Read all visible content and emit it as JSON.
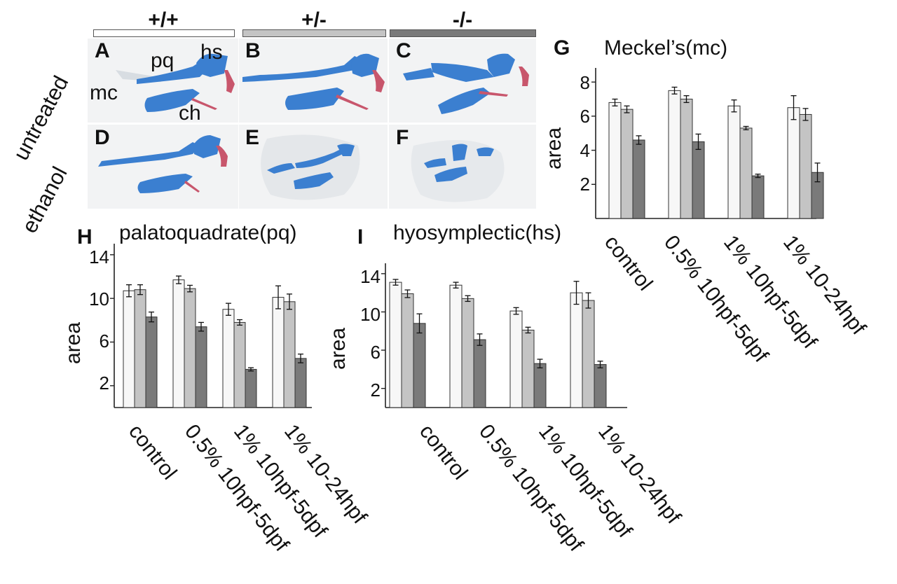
{
  "genotypes": [
    {
      "label": "+/+",
      "color": "#ffffff"
    },
    {
      "label": "+/-",
      "color": "#c4c4c4"
    },
    {
      "label": "-/-",
      "color": "#7a7a7a"
    }
  ],
  "rows": [
    "untreated",
    "ethanol"
  ],
  "panels": [
    {
      "letter": "A",
      "annotations": [
        "pq",
        "hs",
        "mc",
        "ch"
      ]
    },
    {
      "letter": "B"
    },
    {
      "letter": "C"
    },
    {
      "letter": "D"
    },
    {
      "letter": "E"
    },
    {
      "letter": "F"
    }
  ],
  "colors": {
    "cartilage": "#3b7fd0",
    "bone": "#c8566c",
    "panel_bg": "#f2f3f4"
  },
  "chart_data": [
    {
      "letter": "G",
      "type": "bar",
      "title": "Meckel’s(mc)",
      "ylabel": "area",
      "ylim": [
        0,
        8.5
      ],
      "yticks": [
        2,
        4,
        6,
        8
      ],
      "categories": [
        "control",
        "0.5% 10hpf-5dpf",
        "1% 10hpf-5dpf",
        "1% 10-24hpf"
      ],
      "series": [
        {
          "values": [
            6.8,
            7.5,
            6.6,
            6.5
          ],
          "errors": [
            0.2,
            0.2,
            0.35,
            0.7
          ]
        },
        {
          "values": [
            6.4,
            7.0,
            5.3,
            6.1
          ],
          "errors": [
            0.2,
            0.2,
            0.1,
            0.35
          ]
        },
        {
          "values": [
            4.6,
            4.5,
            2.5,
            2.7
          ],
          "errors": [
            0.25,
            0.45,
            0.1,
            0.55
          ]
        }
      ]
    },
    {
      "letter": "H",
      "type": "bar",
      "title": "palatoquadrate(pq)",
      "ylabel": "area",
      "ylim": [
        0,
        14.5
      ],
      "yticks": [
        2,
        6,
        10,
        14
      ],
      "categories": [
        "control",
        "0.5% 10hpf-5dpf",
        "1% 10hpf-5dpf",
        "1% 10-24hpf"
      ],
      "series": [
        {
          "values": [
            10.7,
            11.7,
            9.0,
            10.1
          ],
          "errors": [
            0.55,
            0.35,
            0.55,
            1.05
          ]
        },
        {
          "values": [
            10.8,
            10.9,
            7.8,
            9.7
          ],
          "errors": [
            0.45,
            0.3,
            0.25,
            0.7
          ]
        },
        {
          "values": [
            8.3,
            7.4,
            3.5,
            4.5
          ],
          "errors": [
            0.45,
            0.4,
            0.15,
            0.4
          ]
        }
      ]
    },
    {
      "letter": "I",
      "type": "bar",
      "title": "hyosymplectic(hs)",
      "ylabel": "area",
      "ylim": [
        0,
        14.5
      ],
      "yticks": [
        2,
        6,
        10,
        14
      ],
      "categories": [
        "control",
        "0.5% 10hpf-5dpf",
        "1% 10hpf-5dpf",
        "1% 10-24hpf"
      ],
      "series": [
        {
          "values": [
            13.1,
            12.8,
            10.1,
            12.0
          ],
          "errors": [
            0.3,
            0.3,
            0.35,
            1.2
          ]
        },
        {
          "values": [
            11.9,
            11.4,
            8.1,
            11.2
          ],
          "errors": [
            0.4,
            0.3,
            0.3,
            0.8
          ]
        },
        {
          "values": [
            8.8,
            7.1,
            4.6,
            4.5
          ],
          "errors": [
            1.0,
            0.6,
            0.45,
            0.35
          ]
        }
      ]
    }
  ]
}
